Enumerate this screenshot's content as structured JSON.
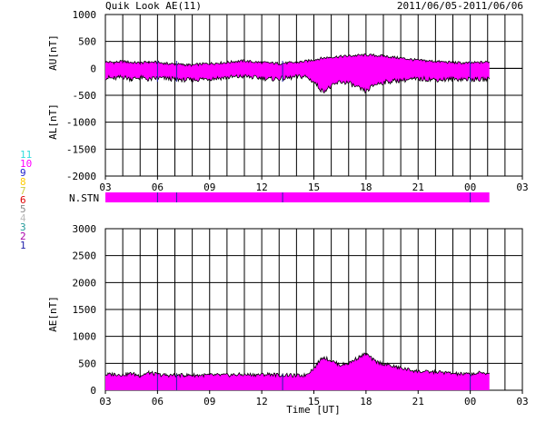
{
  "header": {
    "title": "Quik Look AE(11)",
    "date_range": "2011/06/05-2011/06/06"
  },
  "legend": {
    "counts": [
      {
        "label": "11",
        "color": "#33dddd"
      },
      {
        "label": "10",
        "color": "#ff00ff"
      },
      {
        "label": "9",
        "color": "#2222cc"
      },
      {
        "label": "8",
        "color": "#ffcc00"
      },
      {
        "label": "7",
        "color": "#cccc44"
      },
      {
        "label": "6",
        "color": "#dd0000"
      },
      {
        "label": "5",
        "color": "#888888"
      },
      {
        "label": "4",
        "color": "#bbbbbb"
      },
      {
        "label": "3",
        "color": "#229999"
      },
      {
        "label": "2",
        "color": "#aa00aa"
      },
      {
        "label": "1",
        "color": "#2222aa"
      }
    ]
  },
  "colors": {
    "fill": "#ff00ff",
    "line": "#000000",
    "grid": "#000000",
    "blue_marker": "#2222aa"
  },
  "chart_data": [
    {
      "type": "area",
      "panel": "AU/AL",
      "ylabel_upper": "AU[nT]",
      "ylabel_lower": "AL[nT]",
      "ylim": [
        -2000,
        1000
      ],
      "yticks": [
        1000,
        500,
        0,
        -500,
        -1000,
        -1500,
        -2000
      ],
      "xticks": [
        "03",
        "06",
        "09",
        "12",
        "15",
        "18",
        "21",
        "00",
        "03"
      ],
      "x_hours": [
        3,
        3.5,
        4,
        4.5,
        5,
        5.5,
        6,
        6.5,
        7,
        7.5,
        8,
        8.5,
        9,
        9.5,
        10,
        10.5,
        11,
        11.5,
        12,
        12.5,
        13,
        13.5,
        14,
        14.5,
        15,
        15.5,
        16,
        16.5,
        17,
        17.5,
        18,
        18.5,
        19,
        19.5,
        20,
        20.5,
        21,
        21.5,
        22,
        22.5,
        23,
        23.5,
        24,
        24.5,
        25.1
      ],
      "au": [
        120,
        110,
        130,
        110,
        100,
        120,
        110,
        90,
        80,
        70,
        60,
        80,
        90,
        100,
        110,
        130,
        140,
        120,
        110,
        100,
        90,
        100,
        110,
        130,
        160,
        190,
        210,
        220,
        230,
        240,
        250,
        240,
        230,
        210,
        190,
        170,
        150,
        140,
        130,
        120,
        110,
        100,
        100,
        110,
        120
      ],
      "al": [
        -170,
        -190,
        -160,
        -200,
        -170,
        -210,
        -180,
        -190,
        -200,
        -210,
        -220,
        -200,
        -190,
        -180,
        -170,
        -160,
        -150,
        -170,
        -180,
        -200,
        -190,
        -180,
        -160,
        -150,
        -250,
        -430,
        -340,
        -250,
        -270,
        -360,
        -430,
        -300,
        -260,
        -240,
        -220,
        -210,
        -200,
        -200,
        -210,
        -210,
        -200,
        -200,
        -200,
        -210,
        -200
      ]
    },
    {
      "type": "bar",
      "panel": "N.STN",
      "label": "N.STN",
      "value": 10,
      "x_range": [
        3,
        25.1
      ]
    },
    {
      "type": "area",
      "panel": "AE",
      "ylabel": "AE[nT]",
      "ylim": [
        0,
        3000
      ],
      "yticks": [
        3000,
        2500,
        2000,
        1500,
        1000,
        500,
        0
      ],
      "xticks": [
        "03",
        "06",
        "09",
        "12",
        "15",
        "18",
        "21",
        "00",
        "03"
      ],
      "xlabel": "Time [UT]",
      "x_hours": [
        3,
        3.5,
        4,
        4.5,
        5,
        5.5,
        6,
        6.5,
        7,
        7.5,
        8,
        8.5,
        9,
        9.5,
        10,
        10.5,
        11,
        11.5,
        12,
        12.5,
        13,
        13.5,
        14,
        14.5,
        15,
        15.5,
        16,
        16.5,
        17,
        17.5,
        18,
        18.5,
        19,
        19.5,
        20,
        20.5,
        21,
        21.5,
        22,
        22.5,
        23,
        23.5,
        24,
        24.5,
        25.1
      ],
      "ae": [
        290,
        300,
        290,
        310,
        270,
        330,
        290,
        280,
        280,
        280,
        280,
        280,
        280,
        280,
        280,
        290,
        290,
        290,
        290,
        300,
        280,
        280,
        270,
        280,
        410,
        620,
        550,
        470,
        500,
        600,
        680,
        540,
        490,
        450,
        410,
        380,
        350,
        340,
        340,
        330,
        310,
        300,
        300,
        320,
        320
      ]
    }
  ],
  "markers": {
    "blue_hours": [
      6,
      7.1,
      13.2,
      24
    ]
  },
  "xlabel": "Time [UT]"
}
